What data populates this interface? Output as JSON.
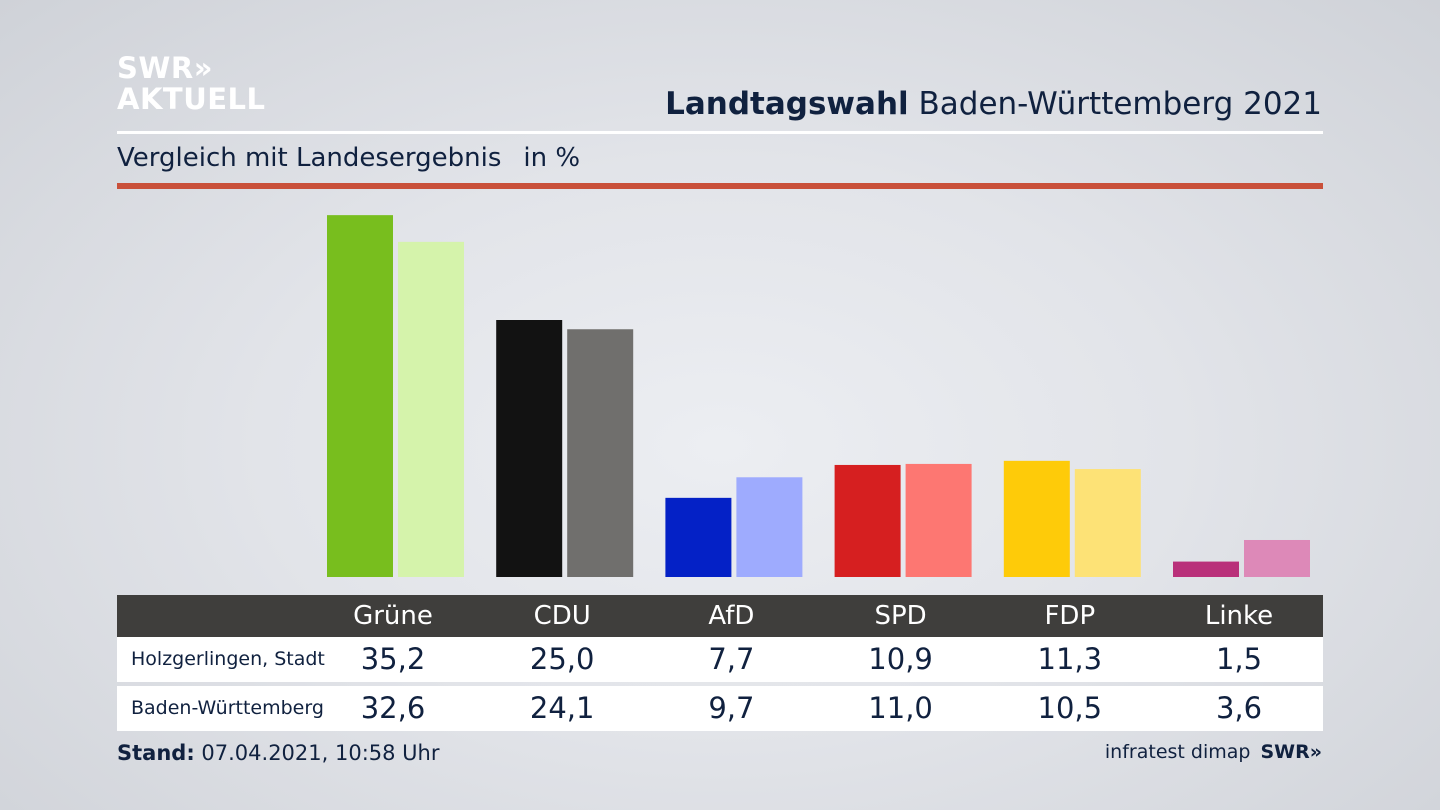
{
  "logo": {
    "line1": "SWR»",
    "line2": "AKTUELL"
  },
  "header": {
    "title_bold": "Landtagswahl",
    "title_rest": " Baden-Württemberg 2021",
    "subtitle": "Vergleich mit Landesergebnis",
    "unit": "in %"
  },
  "colors": {
    "Grüne": [
      "#78be1e",
      "#d5f3ab"
    ],
    "CDU": [
      "#121212",
      "#706f6d"
    ],
    "AfD": [
      "#0421c6",
      "#9eabfe"
    ],
    "SPD": [
      "#d61f20",
      "#fd7772"
    ],
    "FDP": [
      "#fecb09",
      "#fde276"
    ],
    "Linke": [
      "#b9307a",
      "#dd89b8"
    ],
    "accent_rule": "#c9503a",
    "table_header": "#3f3e3c"
  },
  "chart_data": {
    "type": "bar",
    "categories": [
      "Grüne",
      "CDU",
      "AfD",
      "SPD",
      "FDP",
      "Linke"
    ],
    "series": [
      {
        "name": "Holzgerlingen, Stadt",
        "values": [
          35.2,
          25.0,
          7.7,
          10.9,
          11.3,
          1.5
        ]
      },
      {
        "name": "Baden-Württemberg",
        "values": [
          32.6,
          24.1,
          9.7,
          11.0,
          10.5,
          3.6
        ]
      }
    ],
    "title": "Vergleich mit Landesergebnis",
    "ylabel": "in %",
    "grid": false
  },
  "table": {
    "headers": [
      "Grüne",
      "CDU",
      "AfD",
      "SPD",
      "FDP",
      "Linke"
    ],
    "rows": [
      {
        "label": "Holzgerlingen, Stadt",
        "values": [
          "35,2",
          "25,0",
          "7,7",
          "10,9",
          "11,3",
          "1,5"
        ]
      },
      {
        "label": "Baden-Württemberg",
        "values": [
          "32,6",
          "24,1",
          "9,7",
          "11,0",
          "10,5",
          "3,6"
        ]
      }
    ]
  },
  "footer": {
    "stand_label": "Stand:",
    "stand_value": " 07.04.2021, 10:58 Uhr",
    "source": "infratest dimap",
    "source_logo": "SWR»"
  }
}
